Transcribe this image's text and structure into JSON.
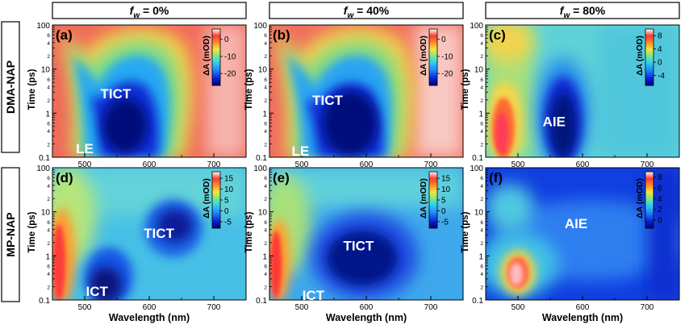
{
  "figure": {
    "column_headers": [
      "= 0%",
      "= 40%",
      "= 80%"
    ],
    "column_header_symbol": "f",
    "column_header_subscript": "w",
    "row_labels": [
      "DMA-NAP",
      "MP-NAP"
    ],
    "xlabel": "Wavelength (nm)",
    "ylabel": "Time (ps)",
    "colorbar_label": "ΔA (mOD)"
  },
  "chart_data": [
    {
      "type": "heatmap",
      "panel": "(a)",
      "row": "DMA-NAP",
      "column": "f_w = 0%",
      "xlim": [
        450,
        750
      ],
      "ylim": [
        0.1,
        100
      ],
      "yscale": "log",
      "x_ticks": [
        "500",
        "600",
        "700"
      ],
      "y_ticks": [
        "0.1",
        "1",
        "10",
        "100"
      ],
      "colorbar_ticks": [
        "0",
        "-10",
        "-20"
      ],
      "colorbar_range": [
        -27,
        6
      ],
      "annotations": [
        {
          "text": "TICT",
          "x": 548,
          "y": 2.8
        },
        {
          "text": "LE",
          "x": 500,
          "y": 0.16
        }
      ]
    },
    {
      "type": "heatmap",
      "panel": "(b)",
      "row": "DMA-NAP",
      "column": "f_w = 40%",
      "xlim": [
        450,
        750
      ],
      "ylim": [
        0.1,
        100
      ],
      "yscale": "log",
      "x_ticks": [
        "500",
        "600",
        "700"
      ],
      "y_ticks": [
        "0.1",
        "1",
        "10",
        "100"
      ],
      "colorbar_ticks": [
        "0",
        "-10",
        "-20"
      ],
      "colorbar_range": [
        -27,
        6
      ],
      "annotations": [
        {
          "text": "TICT",
          "x": 540,
          "y": 2.0
        },
        {
          "text": "LE",
          "x": 498,
          "y": 0.14
        }
      ]
    },
    {
      "type": "heatmap",
      "panel": "(c)",
      "row": "DMA-NAP",
      "column": "f_w = 80%",
      "xlim": [
        450,
        750
      ],
      "ylim": [
        0.1,
        100
      ],
      "yscale": "log",
      "x_ticks": [
        "500",
        "600",
        "700"
      ],
      "y_ticks": [
        "0.1",
        "1",
        "10",
        "100"
      ],
      "colorbar_ticks": [
        "8",
        "4",
        "0",
        "-4"
      ],
      "colorbar_range": [
        -7,
        10
      ],
      "annotations": [
        {
          "text": "AIE",
          "x": 556,
          "y": 0.65
        }
      ]
    },
    {
      "type": "heatmap",
      "panel": "(d)",
      "row": "MP-NAP",
      "column": "f_w = 0%",
      "xlim": [
        450,
        750
      ],
      "ylim": [
        0.1,
        100
      ],
      "yscale": "log",
      "x_ticks": [
        "500",
        "600",
        "700"
      ],
      "y_ticks": [
        "0.1",
        "1",
        "10",
        "100"
      ],
      "colorbar_ticks": [
        "15",
        "10",
        "5",
        "0",
        "-5"
      ],
      "colorbar_range": [
        -8,
        18
      ],
      "annotations": [
        {
          "text": "TICT",
          "x": 615,
          "y": 3.3
        },
        {
          "text": "ICT",
          "x": 519,
          "y": 0.16
        }
      ]
    },
    {
      "type": "heatmap",
      "panel": "(e)",
      "row": "MP-NAP",
      "column": "f_w = 40%",
      "xlim": [
        450,
        750
      ],
      "ylim": [
        0.1,
        100
      ],
      "yscale": "log",
      "x_ticks": [
        "500",
        "600",
        "700"
      ],
      "y_ticks": [
        "0.1",
        "1",
        "10",
        "100"
      ],
      "colorbar_ticks": [
        "15",
        "10",
        "5",
        "0",
        "-5"
      ],
      "colorbar_range": [
        -8,
        18
      ],
      "annotations": [
        {
          "text": "TICT",
          "x": 588,
          "y": 1.7
        },
        {
          "text": "ICT",
          "x": 518,
          "y": 0.13
        }
      ]
    },
    {
      "type": "heatmap",
      "panel": "(f)",
      "row": "MP-NAP",
      "column": "f_w = 80%",
      "xlim": [
        450,
        750
      ],
      "ylim": [
        0.1,
        100
      ],
      "yscale": "log",
      "x_ticks": [
        "500",
        "600",
        "700"
      ],
      "y_ticks": [
        "0.1",
        "1",
        "10",
        "100"
      ],
      "colorbar_ticks": [
        "8",
        "6",
        "4",
        "2",
        "0"
      ],
      "colorbar_range": [
        -1.5,
        9
      ],
      "annotations": [
        {
          "text": "AIE",
          "x": 590,
          "y": 5.5
        }
      ]
    }
  ]
}
